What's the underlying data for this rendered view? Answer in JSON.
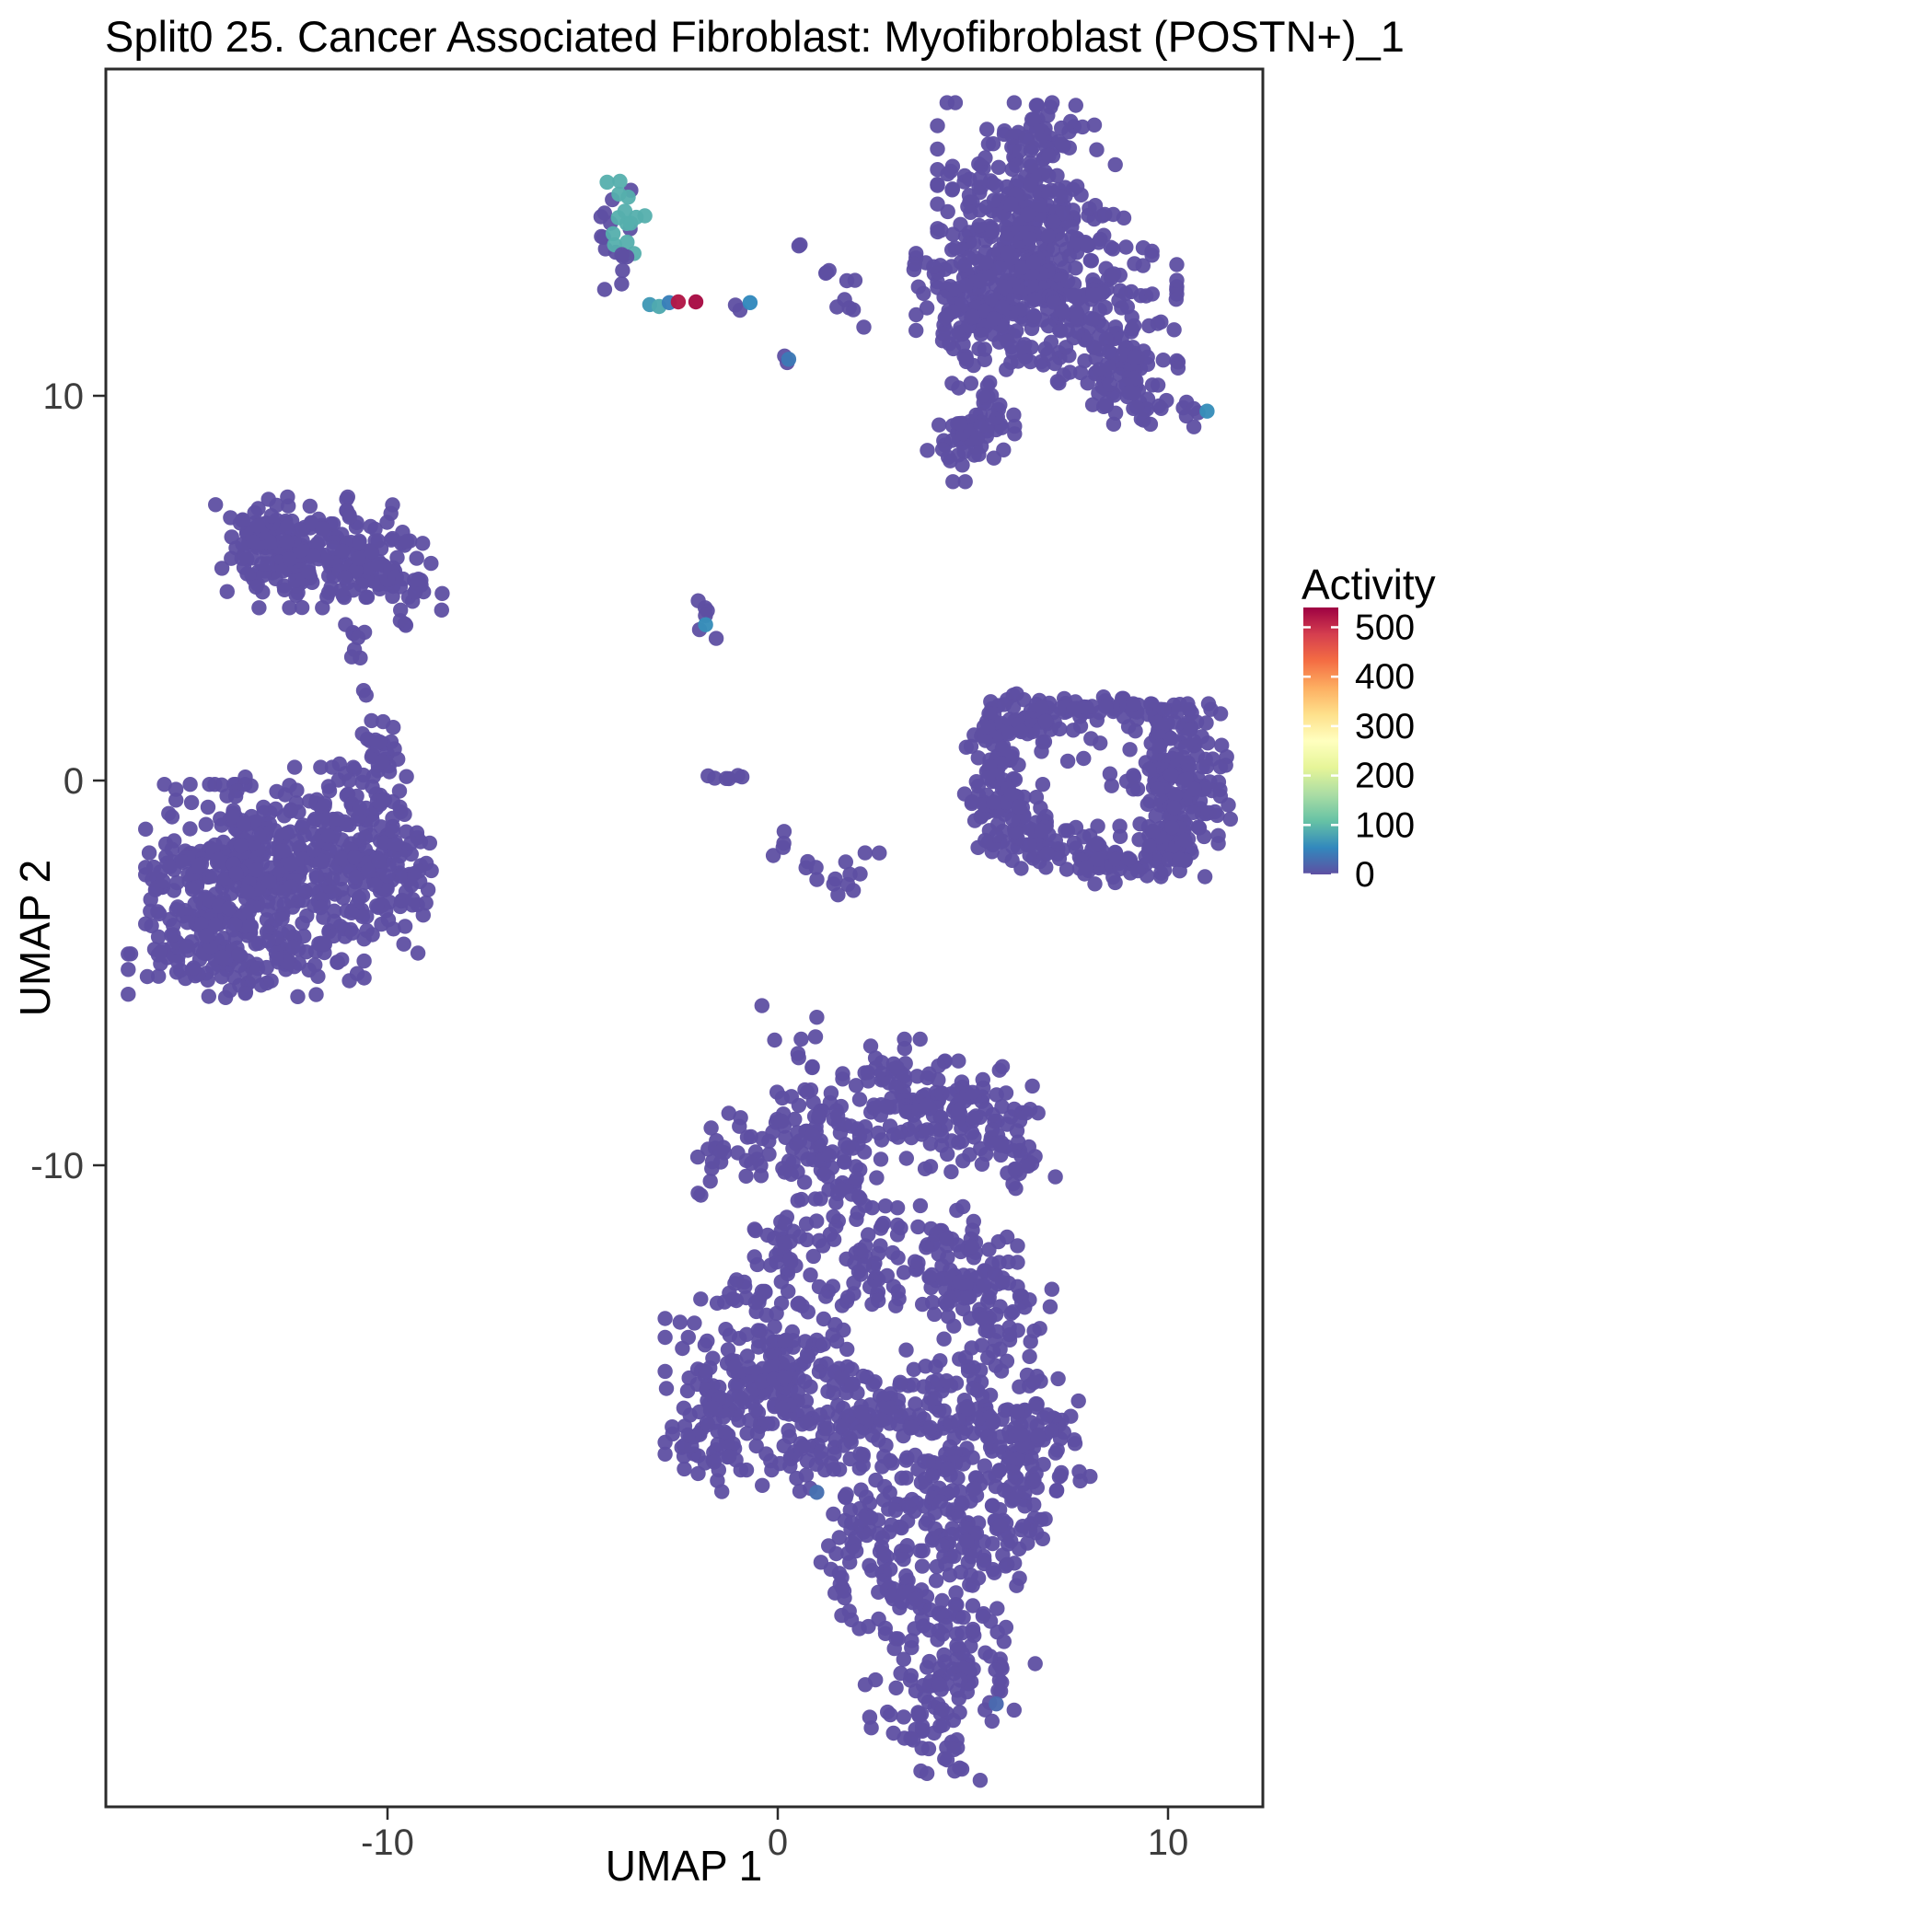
{
  "title": "Split0 25. Cancer Associated Fibroblast: Myofibroblast (POSTN+)_1",
  "axes": {
    "x": {
      "label": "UMAP 1",
      "ticks": [
        -10,
        0,
        10
      ]
    },
    "y": {
      "label": "UMAP 2",
      "ticks": [
        10,
        0,
        -10
      ]
    }
  },
  "legend": {
    "title": "Activity",
    "ticks": [
      500,
      400,
      300,
      200,
      100,
      0
    ],
    "domain": [
      0,
      540
    ]
  },
  "colors": {
    "background": "#ffffff",
    "panel_border": "#2b2b2b",
    "tick_text": "#3d3d3d",
    "title_text": "#000000",
    "point_base": "#5E4FA2",
    "spectral_reversed": [
      "#5E4FA2",
      "#3288BD",
      "#66C2A5",
      "#ABDDA4",
      "#E6F598",
      "#FFFFBF",
      "#FEE08B",
      "#FDAE61",
      "#F46D43",
      "#D53E4F",
      "#9E0142"
    ]
  },
  "chart_data": {
    "type": "scatter",
    "title": "Split0 25. Cancer Associated Fibroblast: Myofibroblast (POSTN+)_1",
    "xlabel": "UMAP 1",
    "ylabel": "UMAP 2",
    "x_ticks": [
      -10,
      0,
      10
    ],
    "y_ticks": [
      10,
      0,
      -10
    ],
    "x_range": [
      -17.2,
      12.4
    ],
    "y_range": [
      -26.7,
      18.5
    ],
    "grid": false,
    "legend_position": "right",
    "color_scale": {
      "legend_title": "Activity",
      "domain": [
        0,
        540
      ],
      "palette": "spectral_reversed"
    },
    "clusters_format": [
      "x",
      "y",
      "sx",
      "sy",
      "n",
      "activity"
    ],
    "clusters": [
      [
        6.37,
        14.78,
        1.06,
        1.32,
        280,
        0
      ],
      [
        7.43,
        12.39,
        1.3,
        1.08,
        220,
        0
      ],
      [
        5.07,
        12.39,
        0.71,
        0.96,
        120,
        0
      ],
      [
        8.73,
        10.84,
        0.71,
        0.6,
        60,
        0
      ],
      [
        6.72,
        16.58,
        0.45,
        0.45,
        25,
        0
      ],
      [
        4.95,
        8.8,
        0.52,
        0.48,
        45,
        0
      ],
      [
        5.42,
        9.64,
        0.35,
        0.35,
        18,
        0
      ],
      [
        9.32,
        9.76,
        0.42,
        0.36,
        20,
        0
      ],
      [
        10.66,
        9.59,
        0.24,
        0.19,
        6,
        0
      ],
      [
        3.54,
        13.23,
        0.1,
        0.1,
        2,
        0
      ],
      [
        4.13,
        13.23,
        0.1,
        0.1,
        2,
        0
      ],
      [
        0.59,
        13.71,
        0.15,
        0.15,
        2,
        0
      ],
      [
        1.3,
        13.35,
        0.2,
        0.2,
        3,
        0
      ],
      [
        1.89,
        13.11,
        0.15,
        0.15,
        2,
        0
      ],
      [
        2.12,
        12.15,
        0.2,
        0.2,
        3,
        0
      ],
      [
        1.53,
        12.39,
        0.15,
        0.15,
        2,
        0
      ],
      [
        0.24,
        10.89,
        0.12,
        0.12,
        2,
        0
      ],
      [
        -4.08,
        14.31,
        0.33,
        0.72,
        12,
        0
      ],
      [
        -4.05,
        14.55,
        0.3,
        0.55,
        14,
        90
      ],
      [
        -3.9,
        13.3,
        0.15,
        0.25,
        4,
        0
      ],
      [
        -1.06,
        12.37,
        0.1,
        0.08,
        2,
        0
      ],
      [
        -12.15,
        5.93,
        1.06,
        0.67,
        170,
        0
      ],
      [
        -10.14,
        5.57,
        0.71,
        0.53,
        70,
        0
      ],
      [
        -13.09,
        6.41,
        0.47,
        0.36,
        30,
        0
      ],
      [
        -9.2,
        4.98,
        0.28,
        0.28,
        10,
        0
      ],
      [
        -10.73,
        3.9,
        0.22,
        0.22,
        5,
        0
      ],
      [
        -10.85,
        3.18,
        0.15,
        0.15,
        3,
        0
      ],
      [
        -9.55,
        4.02,
        0.15,
        0.15,
        3,
        0
      ],
      [
        -10.61,
        2.22,
        0.1,
        0.15,
        2,
        0
      ],
      [
        -10.31,
        1.39,
        0.18,
        0.18,
        3,
        0
      ],
      [
        -10.5,
        0.67,
        0.1,
        0.12,
        2,
        0
      ],
      [
        -13.92,
        -2.68,
        1.06,
        1.2,
        320,
        0
      ],
      [
        -11.67,
        -1.72,
        1.06,
        0.96,
        150,
        0
      ],
      [
        -10.26,
        -2.68,
        0.71,
        0.84,
        80,
        0
      ],
      [
        -14.86,
        -4.35,
        0.83,
        0.6,
        70,
        0
      ],
      [
        -12.62,
        -4.47,
        0.94,
        0.55,
        60,
        0
      ],
      [
        -10.38,
        -0.33,
        0.42,
        0.6,
        35,
        0
      ],
      [
        -10.14,
        0.79,
        0.28,
        0.43,
        12,
        0
      ],
      [
        -9.74,
        -2.08,
        0.35,
        0.48,
        20,
        0
      ],
      [
        -1.77,
        4.21,
        0.17,
        0.24,
        6,
        0
      ],
      [
        -1.49,
        0.07,
        0.38,
        0.1,
        6,
        0
      ],
      [
        0.24,
        -1.84,
        0.19,
        0.24,
        4,
        0
      ],
      [
        0.83,
        -2.44,
        0.28,
        0.24,
        5,
        0
      ],
      [
        1.42,
        -2.73,
        0.24,
        0.19,
        4,
        0
      ],
      [
        2.0,
        -2.32,
        0.19,
        0.19,
        3,
        0
      ],
      [
        2.41,
        -1.84,
        0.14,
        0.19,
        2,
        0
      ],
      [
        5.78,
        0.67,
        0.47,
        0.84,
        70,
        0
      ],
      [
        6.49,
        1.63,
        0.59,
        0.29,
        40,
        0
      ],
      [
        7.9,
        1.82,
        0.71,
        0.24,
        30,
        0
      ],
      [
        9.67,
        1.63,
        0.59,
        0.29,
        40,
        0
      ],
      [
        10.38,
        0.19,
        0.59,
        0.84,
        120,
        0
      ],
      [
        10.02,
        -1.36,
        0.59,
        0.53,
        70,
        0
      ],
      [
        8.16,
        -1.96,
        1.06,
        0.36,
        80,
        0
      ],
      [
        6.25,
        -1.36,
        0.52,
        0.43,
        50,
        0
      ],
      [
        5.54,
        -0.53,
        0.35,
        0.48,
        30,
        0
      ],
      [
        7.55,
        0.91,
        0.71,
        0.48,
        6,
        0
      ],
      [
        8.39,
        -0.29,
        0.5,
        0.4,
        4,
        0
      ],
      [
        5.42,
        1.39,
        0.12,
        0.12,
        2,
        0
      ],
      [
        0.47,
        -6.99,
        0.42,
        0.53,
        12,
        0
      ],
      [
        0.31,
        -8.42,
        0.19,
        0.19,
        3,
        0
      ],
      [
        -0.59,
        -9.45,
        0.52,
        0.53,
        28,
        0
      ],
      [
        -1.6,
        -9.74,
        0.24,
        0.38,
        8,
        0
      ],
      [
        -1.77,
        -10.57,
        0.19,
        0.19,
        3,
        0
      ],
      [
        1.42,
        -9.14,
        0.75,
        0.67,
        65,
        0
      ],
      [
        2.78,
        -7.54,
        0.52,
        0.38,
        22,
        0
      ],
      [
        3.66,
        -8.42,
        0.66,
        0.53,
        50,
        0
      ],
      [
        4.91,
        -8.73,
        0.75,
        0.67,
        80,
        0
      ],
      [
        6.13,
        -9.57,
        0.47,
        0.48,
        25,
        0
      ],
      [
        1.65,
        -10.93,
        0.66,
        0.67,
        45,
        0
      ],
      [
        0.31,
        -12.25,
        0.52,
        0.62,
        35,
        0
      ],
      [
        -1.06,
        -13.09,
        0.28,
        0.36,
        8,
        0
      ],
      [
        2.48,
        -12.85,
        0.66,
        0.6,
        40,
        0
      ],
      [
        4.36,
        -12.49,
        0.83,
        0.67,
        70,
        0
      ],
      [
        5.54,
        -13.56,
        0.71,
        0.67,
        60,
        0
      ],
      [
        -0.35,
        -15.6,
        1.18,
        1.08,
        220,
        0
      ],
      [
        -1.89,
        -17.03,
        0.47,
        0.72,
        40,
        0
      ],
      [
        1.3,
        -17.03,
        0.83,
        0.96,
        70,
        0
      ],
      [
        3.3,
        -16.32,
        0.71,
        0.72,
        60,
        0
      ],
      [
        5.31,
        -16.32,
        0.94,
        0.84,
        110,
        0
      ],
      [
        6.6,
        -17.75,
        0.71,
        0.84,
        80,
        0
      ],
      [
        3.89,
        -18.47,
        0.83,
        0.72,
        70,
        0
      ],
      [
        2.24,
        -19.9,
        0.71,
        0.72,
        50,
        0
      ],
      [
        5.07,
        -19.9,
        0.83,
        0.72,
        70,
        0
      ],
      [
        3.66,
        -21.58,
        0.94,
        0.84,
        80,
        0
      ],
      [
        5.07,
        -23.01,
        0.71,
        0.67,
        50,
        0
      ],
      [
        3.66,
        -24.21,
        0.66,
        0.6,
        40,
        0
      ],
      [
        4.48,
        -25.29,
        0.47,
        0.36,
        15,
        0
      ]
    ],
    "points_format": [
      "x",
      "y",
      "activity"
    ],
    "points": [
      [
        -3.28,
        12.37,
        70
      ],
      [
        -3.04,
        12.32,
        85
      ],
      [
        -2.78,
        12.42,
        45
      ],
      [
        -2.55,
        12.44,
        520
      ],
      [
        -2.1,
        12.44,
        530
      ],
      [
        -0.71,
        12.42,
        55
      ],
      [
        -1.85,
        4.05,
        60
      ],
      [
        11.0,
        9.6,
        60
      ],
      [
        0.28,
        10.95,
        40
      ],
      [
        1.0,
        -18.5,
        30
      ],
      [
        5.6,
        -24.0,
        25
      ]
    ]
  }
}
